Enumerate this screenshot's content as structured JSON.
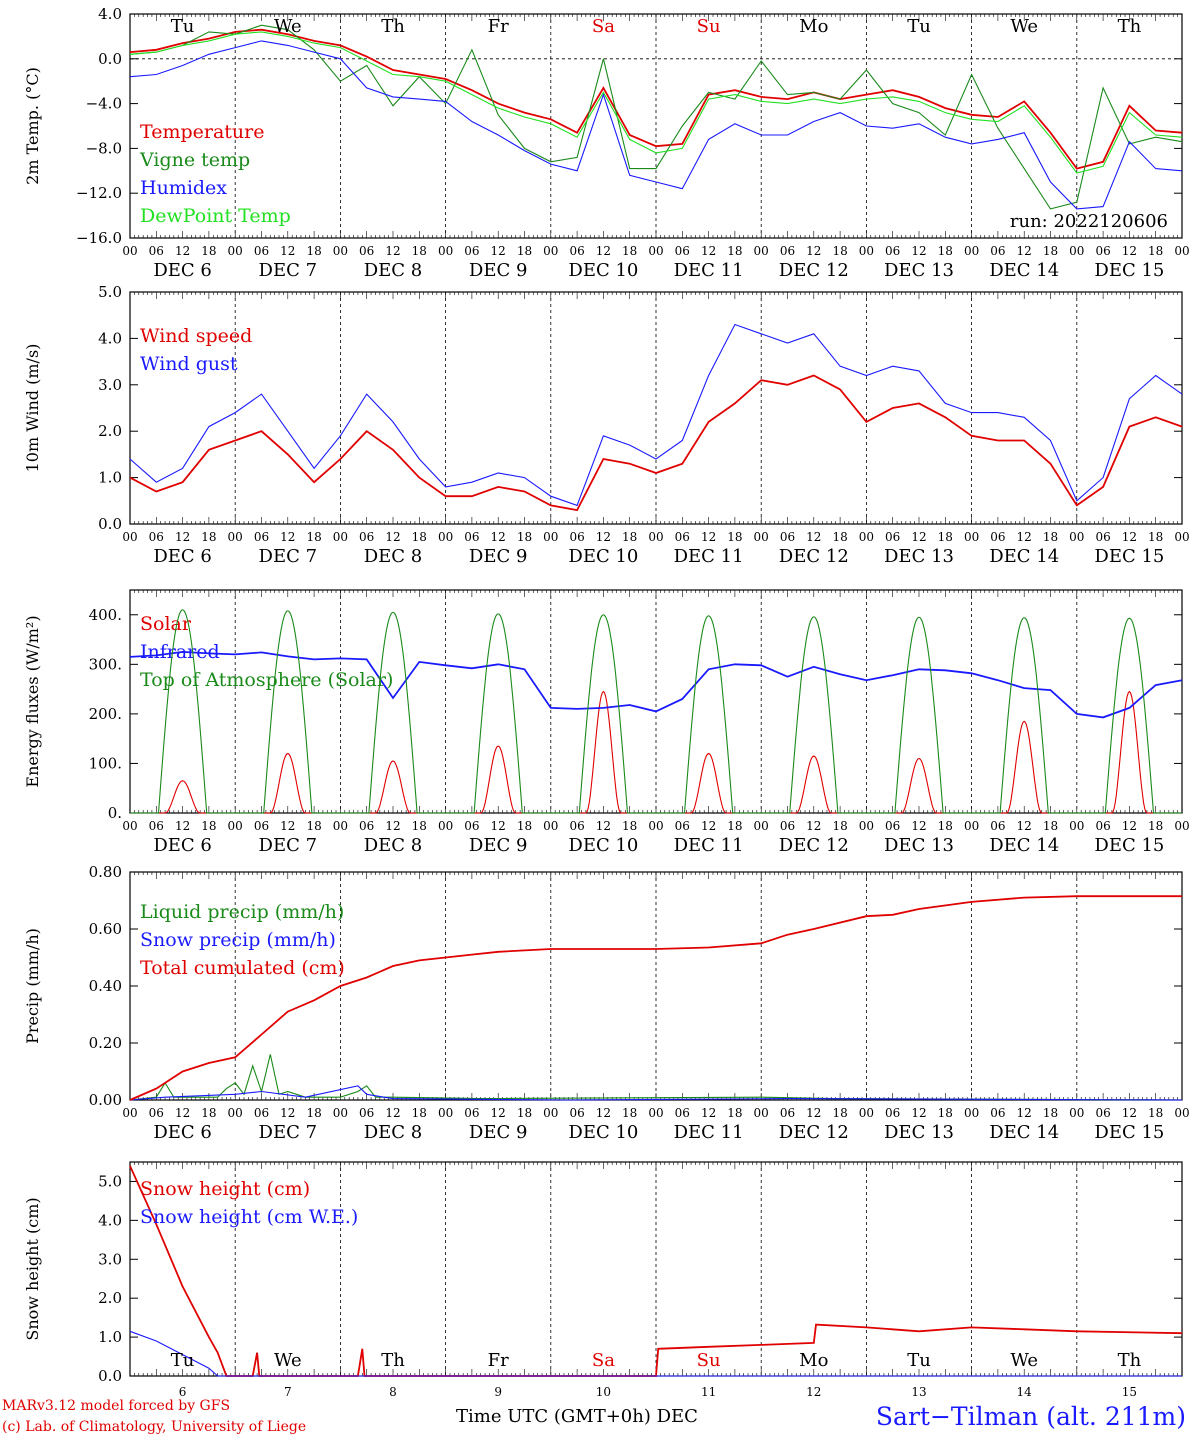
{
  "figure": {
    "run_label": "run: 2022120606",
    "credit_line1": "MARv3.12 model forced by GFS",
    "credit_line2": "(c) Lab. of Climatology, University of Liege",
    "time_axis_label": "Time UTC (GMT+0h) DEC",
    "station": "Sart−Tilman (alt. 211m)",
    "hour_ticks": [
      "00",
      "06",
      "12",
      "18"
    ],
    "day_labels": [
      "DEC  6",
      "DEC  7",
      "DEC  8",
      "DEC  9",
      "DEC 10",
      "DEC 11",
      "DEC 12",
      "DEC 13",
      "DEC 14",
      "DEC 15"
    ],
    "bottom_day_numbers": [
      "6",
      "7",
      "8",
      "9",
      "10",
      "11",
      "12",
      "13",
      "14",
      "15"
    ],
    "weekdays": [
      {
        "label": "Tu",
        "color": "#000000"
      },
      {
        "label": "We",
        "color": "#000000"
      },
      {
        "label": "Th",
        "color": "#000000"
      },
      {
        "label": "Fr",
        "color": "#000000"
      },
      {
        "label": "Sa",
        "color": "#e00000"
      },
      {
        "label": "Su",
        "color": "#e00000"
      },
      {
        "label": "Mo",
        "color": "#000000"
      },
      {
        "label": "Tu",
        "color": "#000000"
      },
      {
        "label": "We",
        "color": "#000000"
      },
      {
        "label": "Th",
        "color": "#000000"
      }
    ]
  },
  "chart_data": [
    {
      "type": "line",
      "ylabel": "2m Temp. (°C)",
      "ylim": [
        -16,
        4
      ],
      "yticks": [
        4,
        0,
        -4,
        -8,
        -12,
        -16
      ],
      "ytick_labels": [
        "4.0",
        "0.0",
        "−4.0",
        "−8.0",
        "−12.0",
        "−16.0"
      ],
      "zero_line": true,
      "x_unit": "hours since DEC 6 00 UTC",
      "xlim": [
        0,
        240
      ],
      "series": [
        {
          "name": "Temperature",
          "color": "#e00000",
          "x": [
            0,
            6,
            12,
            18,
            24,
            30,
            36,
            42,
            48,
            54,
            60,
            66,
            72,
            78,
            84,
            90,
            96,
            102,
            108,
            114,
            120,
            126,
            132,
            138,
            144,
            150,
            156,
            162,
            168,
            174,
            180,
            186,
            192,
            198,
            204,
            210,
            216,
            222,
            228,
            234,
            240
          ],
          "y": [
            0.6,
            0.8,
            1.4,
            1.8,
            2.4,
            2.6,
            2.2,
            1.6,
            1.2,
            0.2,
            -1.0,
            -1.4,
            -1.8,
            -2.8,
            -4.0,
            -4.8,
            -5.4,
            -6.6,
            -2.6,
            -6.8,
            -7.8,
            -7.6,
            -3.2,
            -2.8,
            -3.4,
            -3.6,
            -3.0,
            -3.6,
            -3.2,
            -2.8,
            -3.4,
            -4.4,
            -5.0,
            -5.2,
            -3.8,
            -6.6,
            -9.8,
            -9.2,
            -4.2,
            -6.4,
            -6.6
          ]
        },
        {
          "name": "Vigne temp",
          "color": "#1a8a1a",
          "x": [
            0,
            6,
            12,
            18,
            24,
            30,
            36,
            42,
            48,
            54,
            60,
            66,
            72,
            78,
            84,
            90,
            96,
            102,
            108,
            114,
            120,
            126,
            132,
            138,
            144,
            150,
            156,
            162,
            168,
            174,
            180,
            186,
            192,
            198,
            204,
            210,
            216,
            222,
            228,
            234,
            240
          ],
          "y": [
            0.4,
            0.6,
            1.2,
            2.4,
            2.2,
            3.0,
            2.6,
            0.8,
            -2.0,
            -0.6,
            -4.2,
            -1.6,
            -4.0,
            0.8,
            -5.0,
            -8.0,
            -9.2,
            -8.8,
            0.0,
            -9.8,
            -9.8,
            -6.0,
            -3.0,
            -3.6,
            -0.2,
            -3.2,
            -3.0,
            -3.6,
            -1.0,
            -4.0,
            -4.8,
            -6.8,
            -1.4,
            -6.2,
            -9.8,
            -13.4,
            -12.8,
            -2.6,
            -7.6,
            -7.0,
            -7.4
          ]
        },
        {
          "name": "Humidex",
          "color": "#1a1aff",
          "x": [
            0,
            6,
            12,
            18,
            24,
            30,
            36,
            42,
            48,
            54,
            60,
            66,
            72,
            78,
            84,
            90,
            96,
            102,
            108,
            114,
            120,
            126,
            132,
            138,
            144,
            150,
            156,
            162,
            168,
            174,
            180,
            186,
            192,
            198,
            204,
            210,
            216,
            222,
            228,
            234,
            240
          ],
          "y": [
            -1.6,
            -1.4,
            -0.6,
            0.4,
            1.0,
            1.6,
            1.2,
            0.6,
            0.0,
            -2.6,
            -3.4,
            -3.6,
            -3.8,
            -5.6,
            -6.8,
            -8.2,
            -9.4,
            -10.0,
            -3.2,
            -10.4,
            -11.0,
            -11.6,
            -7.2,
            -5.8,
            -6.8,
            -6.8,
            -5.6,
            -4.8,
            -6.0,
            -6.2,
            -5.8,
            -7.0,
            -7.6,
            -7.2,
            -6.6,
            -11.0,
            -13.4,
            -13.2,
            -7.4,
            -9.8,
            -10.0
          ]
        },
        {
          "name": "DewPoint Temp",
          "color": "#22e022",
          "x": [
            0,
            6,
            12,
            18,
            24,
            30,
            36,
            42,
            48,
            54,
            60,
            66,
            72,
            78,
            84,
            90,
            96,
            102,
            108,
            114,
            120,
            126,
            132,
            138,
            144,
            150,
            156,
            162,
            168,
            174,
            180,
            186,
            192,
            198,
            204,
            210,
            216,
            222,
            228,
            234,
            240
          ],
          "y": [
            0.4,
            0.6,
            1.2,
            1.6,
            2.2,
            2.4,
            2.0,
            1.4,
            1.0,
            -0.2,
            -1.4,
            -1.6,
            -2.0,
            -3.2,
            -4.4,
            -5.2,
            -5.8,
            -7.0,
            -3.0,
            -7.2,
            -8.4,
            -8.0,
            -3.6,
            -3.2,
            -3.8,
            -4.0,
            -3.6,
            -4.0,
            -3.6,
            -3.4,
            -3.8,
            -4.8,
            -5.4,
            -5.6,
            -4.2,
            -7.0,
            -10.2,
            -9.6,
            -4.8,
            -6.8,
            -7.0
          ]
        }
      ]
    },
    {
      "type": "line",
      "ylabel": "10m Wind (m/s)",
      "ylim": [
        0,
        5
      ],
      "yticks": [
        0,
        1,
        2,
        3,
        4,
        5
      ],
      "ytick_labels": [
        "0.0",
        "1.0",
        "2.0",
        "3.0",
        "4.0",
        "5.0"
      ],
      "xlim": [
        0,
        240
      ],
      "series": [
        {
          "name": "Wind speed",
          "color": "#e00000",
          "x": [
            0,
            6,
            12,
            18,
            24,
            30,
            36,
            42,
            48,
            54,
            60,
            66,
            72,
            78,
            84,
            90,
            96,
            102,
            108,
            114,
            120,
            126,
            132,
            138,
            144,
            150,
            156,
            162,
            168,
            174,
            180,
            186,
            192,
            198,
            204,
            210,
            216,
            222,
            228,
            234,
            240
          ],
          "y": [
            1.0,
            0.7,
            0.9,
            1.6,
            1.8,
            2.0,
            1.5,
            0.9,
            1.4,
            2.0,
            1.6,
            1.0,
            0.6,
            0.6,
            0.8,
            0.7,
            0.4,
            0.3,
            1.4,
            1.3,
            1.1,
            1.3,
            2.2,
            2.6,
            3.1,
            3.0,
            3.2,
            2.9,
            2.2,
            2.5,
            2.6,
            2.3,
            1.9,
            1.8,
            1.8,
            1.3,
            0.4,
            0.8,
            2.1,
            2.3,
            2.1
          ]
        },
        {
          "name": "Wind gust",
          "color": "#1a1aff",
          "x": [
            0,
            6,
            12,
            18,
            24,
            30,
            36,
            42,
            48,
            54,
            60,
            66,
            72,
            78,
            84,
            90,
            96,
            102,
            108,
            114,
            120,
            126,
            132,
            138,
            144,
            150,
            156,
            162,
            168,
            174,
            180,
            186,
            192,
            198,
            204,
            210,
            216,
            222,
            228,
            234,
            240
          ],
          "y": [
            1.4,
            0.9,
            1.2,
            2.1,
            2.4,
            2.8,
            2.0,
            1.2,
            1.9,
            2.8,
            2.2,
            1.4,
            0.8,
            0.9,
            1.1,
            1.0,
            0.6,
            0.4,
            1.9,
            1.7,
            1.4,
            1.8,
            3.2,
            4.3,
            4.1,
            3.9,
            4.1,
            3.4,
            3.2,
            3.4,
            3.3,
            2.6,
            2.4,
            2.4,
            2.3,
            1.8,
            0.5,
            1.0,
            2.7,
            3.2,
            2.8
          ]
        }
      ]
    },
    {
      "type": "line",
      "ylabel": "Energy fluxes (W/m²)",
      "ylim": [
        0,
        450
      ],
      "yticks": [
        0,
        100,
        200,
        300,
        400
      ],
      "ytick_labels": [
        "0.",
        "100.",
        "200.",
        "300.",
        "400."
      ],
      "xlim": [
        0,
        240
      ],
      "series": [
        {
          "name": "Solar",
          "color": "#e00000",
          "daily_peaks": [
            65,
            120,
            105,
            135,
            245,
            120,
            115,
            110,
            185,
            245
          ]
        },
        {
          "name": "Infrared",
          "color": "#1a1aff",
          "x": [
            0,
            6,
            12,
            18,
            24,
            30,
            36,
            42,
            48,
            54,
            60,
            66,
            72,
            78,
            84,
            90,
            96,
            102,
            108,
            114,
            120,
            126,
            132,
            138,
            144,
            150,
            156,
            162,
            168,
            174,
            180,
            186,
            192,
            198,
            204,
            210,
            216,
            222,
            228,
            234,
            240
          ],
          "y": [
            315,
            318,
            325,
            322,
            320,
            324,
            316,
            310,
            312,
            310,
            232,
            305,
            298,
            292,
            300,
            290,
            212,
            210,
            212,
            218,
            205,
            230,
            290,
            300,
            298,
            275,
            295,
            280,
            268,
            278,
            290,
            288,
            282,
            268,
            252,
            248,
            200,
            193,
            212,
            258,
            268
          ]
        },
        {
          "name": "Top of Atmosphere (Solar)",
          "color": "#1a8a1a",
          "daily_peaks": [
            410,
            408,
            405,
            402,
            400,
            398,
            396,
            395,
            394,
            393
          ]
        }
      ]
    },
    {
      "type": "line",
      "ylabel": "Precip (mm/h)",
      "ylim": [
        0,
        0.8
      ],
      "yticks": [
        0,
        0.2,
        0.4,
        0.6,
        0.8
      ],
      "ytick_labels": [
        "0.00",
        "0.20",
        "0.40",
        "0.60",
        "0.80"
      ],
      "xlim": [
        0,
        240
      ],
      "series": [
        {
          "name": "Liquid precip (mm/h)",
          "color": "#1a8a1a",
          "x": [
            0,
            6,
            8,
            10,
            20,
            22,
            24,
            26,
            28,
            30,
            32,
            34,
            36,
            40,
            48,
            52,
            54,
            56,
            60,
            80,
            144,
            160,
            240
          ],
          "y": [
            0,
            0.01,
            0.06,
            0.01,
            0.01,
            0.04,
            0.06,
            0.02,
            0.12,
            0.03,
            0.16,
            0.02,
            0.03,
            0.01,
            0.01,
            0.03,
            0.05,
            0.01,
            0.01,
            0.005,
            0.01,
            0.005,
            0
          ]
        },
        {
          "name": "Snow precip (mm/h)",
          "color": "#1a1aff",
          "x": [
            0,
            8,
            24,
            30,
            40,
            52,
            54,
            60,
            100,
            150,
            240
          ],
          "y": [
            0,
            0.01,
            0.02,
            0.03,
            0.01,
            0.05,
            0.02,
            0.005,
            0.0,
            0.005,
            0
          ]
        },
        {
          "name": "Total cumulated (cm)",
          "color": "#e00000",
          "x": [
            0,
            6,
            12,
            18,
            24,
            30,
            36,
            42,
            48,
            54,
            60,
            66,
            72,
            78,
            84,
            96,
            108,
            120,
            132,
            144,
            150,
            156,
            168,
            174,
            180,
            192,
            204,
            216,
            228,
            240
          ],
          "y": [
            0.0,
            0.04,
            0.1,
            0.13,
            0.15,
            0.23,
            0.31,
            0.35,
            0.4,
            0.43,
            0.47,
            0.49,
            0.5,
            0.51,
            0.52,
            0.53,
            0.53,
            0.53,
            0.535,
            0.55,
            0.58,
            0.6,
            0.645,
            0.65,
            0.67,
            0.695,
            0.71,
            0.715,
            0.715,
            0.715
          ]
        }
      ]
    },
    {
      "type": "line",
      "ylabel": "Snow height (cm)",
      "ylim": [
        0,
        5.5
      ],
      "yticks": [
        0,
        1,
        2,
        3,
        4,
        5
      ],
      "ytick_labels": [
        "0.0",
        "1.0",
        "2.0",
        "3.0",
        "4.0",
        "5.0"
      ],
      "xlim": [
        0,
        240
      ],
      "series": [
        {
          "name": "Snow height (cm)",
          "color": "#e00000",
          "x": [
            0,
            6,
            12,
            18,
            20,
            22,
            24,
            26,
            28,
            29,
            29.5,
            30,
            52,
            53,
            53.5,
            54,
            120,
            120.5,
            132,
            144,
            156,
            156.5,
            168,
            180,
            192,
            204,
            216,
            240
          ],
          "y": [
            5.4,
            3.9,
            2.3,
            1.0,
            0.6,
            0.0,
            0.0,
            0.0,
            0.0,
            0.6,
            0.0,
            0.0,
            0.0,
            0.7,
            0.0,
            0.0,
            0.0,
            0.7,
            0.75,
            0.8,
            0.85,
            1.32,
            1.25,
            1.15,
            1.25,
            1.2,
            1.15,
            1.1
          ]
        },
        {
          "name": "Snow height (cm W.E.)",
          "color": "#1a1aff",
          "x": [
            0,
            6,
            12,
            18,
            20,
            240
          ],
          "y": [
            1.15,
            0.9,
            0.55,
            0.2,
            0.0,
            0.0
          ]
        }
      ]
    }
  ]
}
